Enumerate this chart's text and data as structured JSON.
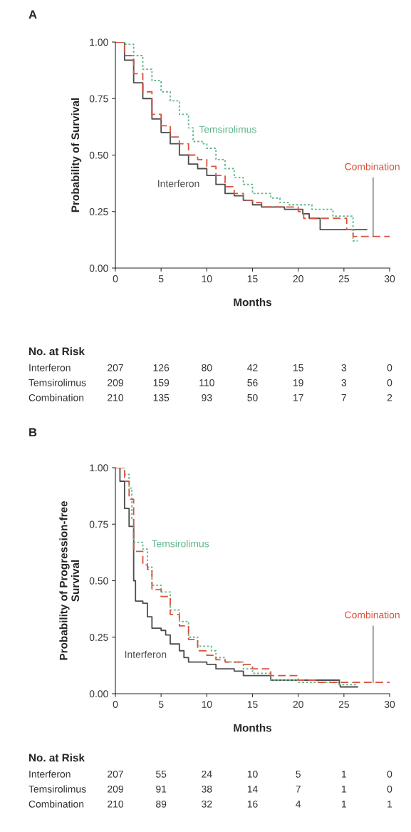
{
  "chart_data": [
    {
      "type": "step",
      "title": "A",
      "ylabel": "Probability of Survival",
      "xlabel": "Months",
      "xlim": [
        0,
        30
      ],
      "xticks": [
        0,
        5,
        10,
        15,
        20,
        25,
        30
      ],
      "ylim": [
        0,
        1
      ],
      "yticks": [
        {
          "value": 0,
          "label": "0.00"
        },
        {
          "value": 0.25,
          "label": "0.25"
        },
        {
          "value": 0.5,
          "label": "0.50"
        },
        {
          "value": 0.75,
          "label": "0.75"
        },
        {
          "value": 1,
          "label": "1.00"
        }
      ],
      "grid": false,
      "legend": false,
      "marker": "none",
      "series": [
        {
          "name": "Interferon",
          "color": "#4d4d4d",
          "line_style": "solid",
          "x": [
            0,
            1,
            2,
            3,
            4,
            5,
            6,
            7,
            8,
            9,
            10,
            11,
            12,
            12.8,
            13,
            14,
            15,
            16,
            18.5,
            20.5,
            21.2,
            22.4,
            27.5
          ],
          "values": [
            1.0,
            0.92,
            0.82,
            0.75,
            0.66,
            0.6,
            0.55,
            0.5,
            0.46,
            0.44,
            0.41,
            0.37,
            0.33,
            0.33,
            0.32,
            0.3,
            0.28,
            0.27,
            0.26,
            0.24,
            0.22,
            0.17,
            0.17
          ]
        },
        {
          "name": "Temsirolimus",
          "color": "#5fb58a",
          "line_style": "dotted",
          "x": [
            0,
            0.5,
            1,
            2,
            3,
            4,
            5,
            6,
            7,
            8,
            8.5,
            9.5,
            10,
            11,
            12,
            13,
            14,
            15,
            16,
            17,
            18,
            19,
            21.5,
            23.8,
            26,
            26.5
          ],
          "values": [
            1.0,
            1.0,
            0.99,
            0.94,
            0.88,
            0.83,
            0.78,
            0.74,
            0.68,
            0.62,
            0.56,
            0.55,
            0.53,
            0.48,
            0.44,
            0.4,
            0.37,
            0.33,
            0.33,
            0.31,
            0.29,
            0.28,
            0.26,
            0.23,
            0.12,
            0.12
          ]
        },
        {
          "name": "Combination",
          "color": "#d9533f",
          "line_style": "dashed",
          "x": [
            0,
            1,
            2,
            3,
            4,
            5,
            6,
            7,
            8,
            9,
            10,
            11,
            12,
            13,
            14,
            15,
            16,
            18,
            20,
            20.6,
            25.3,
            26,
            30
          ],
          "values": [
            1.0,
            0.94,
            0.86,
            0.78,
            0.68,
            0.63,
            0.58,
            0.55,
            0.5,
            0.48,
            0.45,
            0.41,
            0.36,
            0.33,
            0.3,
            0.29,
            0.27,
            0.27,
            0.25,
            0.22,
            0.17,
            0.14,
            0.14
          ]
        }
      ],
      "annotations": [
        "No. at Risk",
        "Interferon",
        "207",
        "126",
        "80",
        "42",
        "15",
        "3",
        "0",
        "Temsirolimus",
        "209",
        "159",
        "110",
        "56",
        "19",
        "3",
        "0",
        "Combination",
        "210",
        "135",
        "93",
        "50",
        "17",
        "7",
        "2"
      ]
    },
    {
      "type": "step",
      "title": "B",
      "ylabel": "Probability of Progression-free\nSurvival",
      "xlabel": "Months",
      "xlim": [
        0,
        30
      ],
      "xticks": [
        0,
        5,
        10,
        15,
        20,
        25,
        30
      ],
      "ylim": [
        0,
        1
      ],
      "yticks": [
        {
          "value": 0,
          "label": "0.00"
        },
        {
          "value": 0.25,
          "label": "0.25"
        },
        {
          "value": 0.5,
          "label": "0.50"
        },
        {
          "value": 0.75,
          "label": "0.75"
        },
        {
          "value": 1,
          "label": "1.00"
        }
      ],
      "grid": false,
      "legend": false,
      "marker": "none",
      "series": [
        {
          "name": "Interferon",
          "color": "#4d4d4d",
          "line_style": "solid",
          "x": [
            0,
            0.5,
            1,
            1.5,
            2,
            2.2,
            3,
            3.5,
            4,
            5,
            5.5,
            6,
            7,
            7.5,
            8,
            10,
            11,
            13,
            14,
            17,
            24.5,
            24.6,
            26.5
          ],
          "values": [
            1.0,
            0.94,
            0.82,
            0.74,
            0.5,
            0.41,
            0.4,
            0.34,
            0.29,
            0.28,
            0.26,
            0.22,
            0.19,
            0.16,
            0.14,
            0.13,
            0.11,
            0.1,
            0.08,
            0.06,
            0.04,
            0.03,
            0.03
          ]
        },
        {
          "name": "Temsirolimus",
          "color": "#5fb58a",
          "line_style": "dotted",
          "x": [
            0,
            1,
            1.5,
            1.8,
            2,
            3,
            3.5,
            4,
            5,
            6,
            7,
            8,
            9,
            10.5,
            11,
            12,
            14,
            15,
            17,
            20,
            24.5,
            26.5
          ],
          "values": [
            1.0,
            0.97,
            0.91,
            0.77,
            0.67,
            0.64,
            0.56,
            0.48,
            0.45,
            0.37,
            0.32,
            0.25,
            0.21,
            0.19,
            0.16,
            0.14,
            0.11,
            0.09,
            0.06,
            0.05,
            0.04,
            0.04
          ]
        },
        {
          "name": "Combination",
          "color": "#d9533f",
          "line_style": "dashed",
          "x": [
            0,
            1,
            1.5,
            2,
            3,
            3.5,
            4,
            5,
            6,
            7,
            8,
            9,
            10,
            11,
            12,
            14,
            15,
            17,
            20,
            22,
            24.5,
            30
          ],
          "values": [
            1.0,
            0.94,
            0.86,
            0.63,
            0.57,
            0.55,
            0.46,
            0.43,
            0.35,
            0.3,
            0.24,
            0.19,
            0.17,
            0.15,
            0.14,
            0.13,
            0.11,
            0.08,
            0.06,
            0.05,
            0.05,
            0.05
          ]
        }
      ],
      "annotations": [
        "No. at Risk",
        "Interferon",
        "207",
        "55",
        "24",
        "10",
        "5",
        "1",
        "0",
        "Temsirolimus",
        "209",
        "91",
        "38",
        "14",
        "7",
        "1",
        "0",
        "Combination",
        "210",
        "89",
        "32",
        "16",
        "4",
        "1",
        "1"
      ]
    }
  ]
}
